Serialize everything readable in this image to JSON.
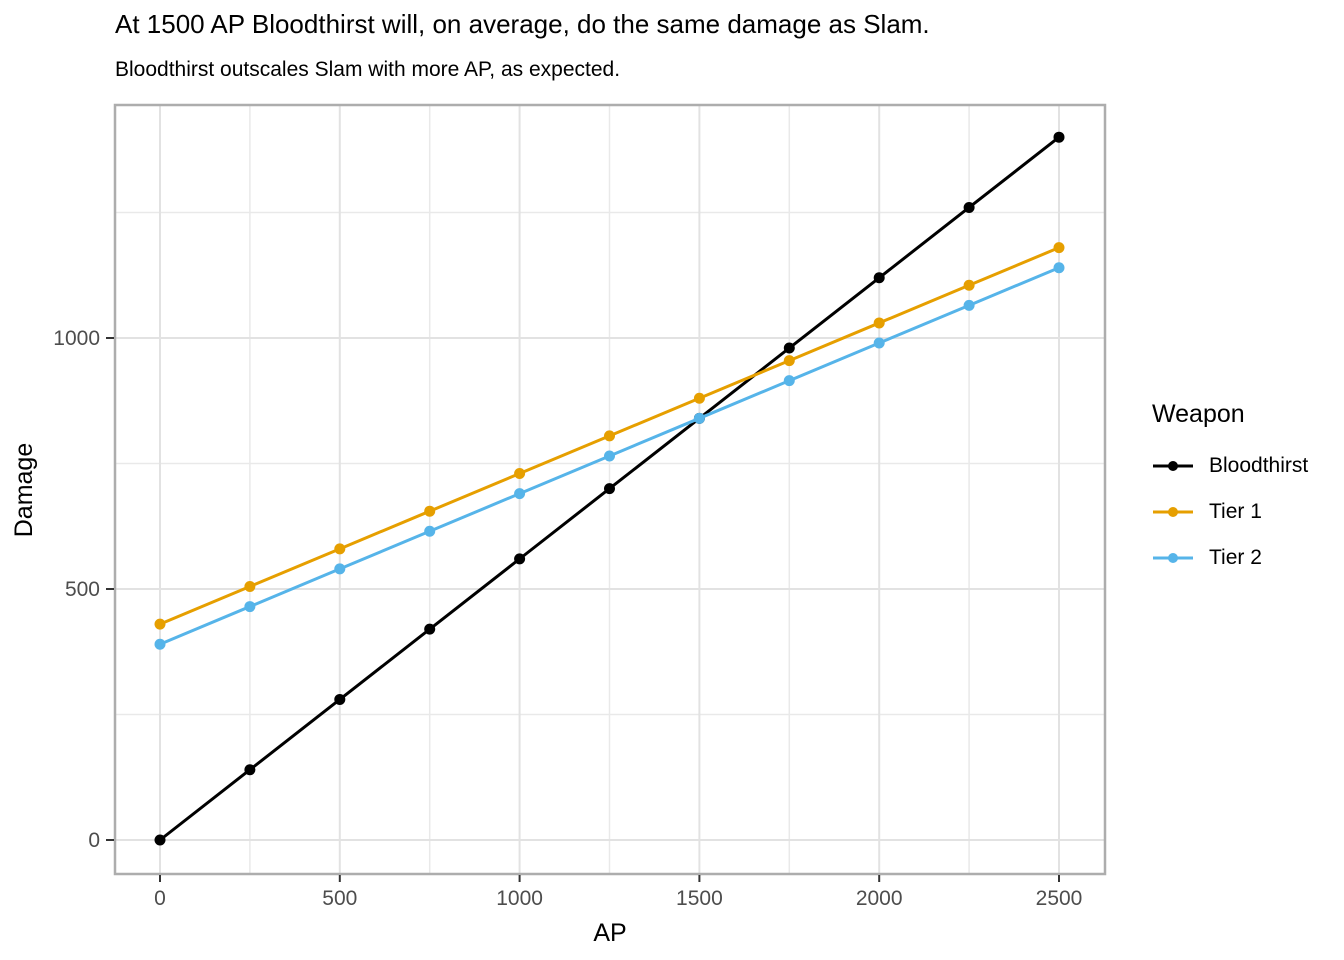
{
  "chart_data": {
    "type": "line",
    "title": "At 1500 AP Bloodthirst will, on average, do the same damage as Slam.",
    "subtitle": "Bloodthirst outscales Slam with more AP, as expected.",
    "x_axis": {
      "label": "AP",
      "range": [
        0,
        2500
      ],
      "ticks": [
        {
          "value": 0,
          "label": "0"
        },
        {
          "value": 500,
          "label": "500"
        },
        {
          "value": 1000,
          "label": "1000"
        },
        {
          "value": 1500,
          "label": "1500"
        },
        {
          "value": 2000,
          "label": "2000"
        },
        {
          "value": 2500,
          "label": "2500"
        }
      ],
      "minor_ticks": [
        250,
        750,
        1250,
        1750,
        2250
      ]
    },
    "y_axis": {
      "label": "Damage",
      "range": [
        0,
        1400
      ],
      "ticks": [
        {
          "value": 0,
          "label": "0"
        },
        {
          "value": 500,
          "label": "500"
        },
        {
          "value": 1000,
          "label": "1000"
        }
      ],
      "minor_ticks": [
        250,
        750,
        1250
      ]
    },
    "x": [
      0,
      250,
      500,
      750,
      1000,
      1250,
      1500,
      1750,
      2000,
      2250,
      2500
    ],
    "series": [
      {
        "id": "bloodthirst",
        "name": "Bloodthirst",
        "color": "#000000",
        "values": [
          0,
          140,
          280,
          420,
          560,
          700,
          840,
          980,
          1120,
          1260,
          1400
        ]
      },
      {
        "id": "tier-1",
        "name": "Tier 1",
        "color": "#E69F00",
        "values": [
          430,
          505,
          580,
          655,
          730,
          805,
          880,
          955,
          1030,
          1105,
          1180
        ]
      },
      {
        "id": "tier-2",
        "name": "Tier 2",
        "color": "#56B4E9",
        "values": [
          390,
          465,
          540,
          615,
          690,
          765,
          840,
          915,
          990,
          1065,
          1140
        ]
      }
    ],
    "legend": {
      "title": "Weapon",
      "position": "right"
    },
    "grid": true,
    "marker": "point",
    "background": "#ffffff"
  }
}
